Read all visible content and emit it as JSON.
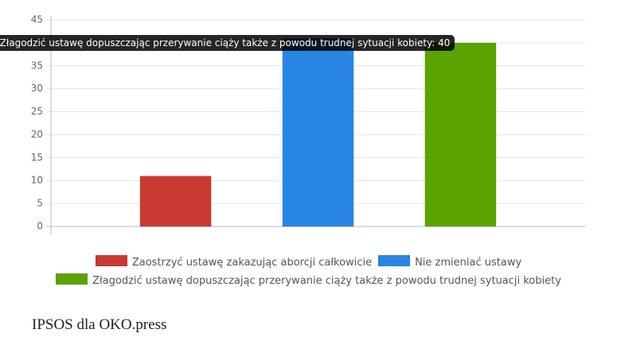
{
  "chart_data": {
    "type": "bar",
    "categories": [
      null
    ],
    "series": [
      {
        "name": "Zaostrzyć ustawę zakazując aborcji całkowicie",
        "color": "#c83a31",
        "values": [
          11
        ]
      },
      {
        "name": "Nie zmieniać ustawy",
        "color": "#2985e2",
        "values": [
          41
        ]
      },
      {
        "name": "Złagodzić ustawę dopuszczając przerywanie ciąży także z powodu trudnej sytuacji kobiety",
        "color": "#5ba300",
        "values": [
          40
        ]
      }
    ],
    "ylim": [
      0,
      45
    ],
    "yticks": [
      0,
      5,
      10,
      15,
      20,
      25,
      30,
      35,
      40,
      45
    ],
    "grid": true,
    "source": "IPSOS dla OKO.press"
  }
}
